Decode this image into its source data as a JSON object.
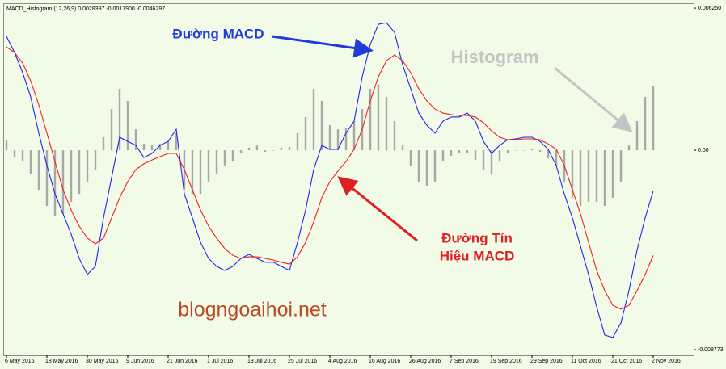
{
  "chart_data": {
    "type": "combo",
    "title": "MACD_Histogram (12,26,9) 0.0028397 -0.0017900 -0.0046297",
    "x": [
      0,
      2,
      4,
      6,
      8,
      10,
      12,
      14,
      16,
      18,
      20,
      22,
      24,
      26,
      28,
      30,
      32,
      34,
      36,
      38,
      40,
      42,
      44,
      46,
      48,
      50,
      52,
      54,
      56,
      58,
      60,
      62,
      64,
      66,
      68,
      70,
      72,
      74,
      76,
      78,
      80,
      82,
      84,
      86,
      88,
      90,
      92,
      94,
      96,
      98,
      100,
      102,
      104,
      106,
      108,
      110,
      112,
      114,
      116,
      118,
      120,
      122,
      124,
      126,
      128,
      130,
      132,
      134,
      136,
      138,
      140,
      142,
      144,
      146,
      148,
      150,
      152,
      154,
      156,
      158,
      160
    ],
    "xlim": [
      -0.6,
      170
    ],
    "xticks": [
      {
        "value": 0,
        "label": "6 May 2016"
      },
      {
        "value": 10,
        "label": "18 May 2016"
      },
      {
        "value": 20,
        "label": "30 May 2016"
      },
      {
        "value": 30,
        "label": "9 Jun 2016"
      },
      {
        "value": 40,
        "label": "21 Jun 2016"
      },
      {
        "value": 50,
        "label": "1 Jul 2016"
      },
      {
        "value": 60,
        "label": "13 Jul 2016"
      },
      {
        "value": 70,
        "label": "25 Jul 2016"
      },
      {
        "value": 80,
        "label": "4 Aug 2016"
      },
      {
        "value": 90,
        "label": "16 Aug 2016"
      },
      {
        "value": 100,
        "label": "26 Aug 2016"
      },
      {
        "value": 110,
        "label": "7 Sep 2016"
      },
      {
        "value": 120,
        "label": "19 Sep 2016"
      },
      {
        "value": 130,
        "label": "29 Sep 2016"
      },
      {
        "value": 140,
        "label": "11 Oct 2016"
      },
      {
        "value": 150,
        "label": "21 Oct 2016"
      },
      {
        "value": 160,
        "label": "2 Nov 2016"
      }
    ],
    "ylim": [
      -0.00902,
      0.00643
    ],
    "yticks": [
      {
        "value": 0.00625,
        "label": "0.006250"
      },
      {
        "value": 0,
        "label": "0.00"
      },
      {
        "value": -0.008773,
        "label": "-0.008773"
      }
    ],
    "series": [
      {
        "type": "bar",
        "color": "#a8a8a8",
        "values": [
          0.00046,
          -0.00032,
          -0.0005,
          -0.00103,
          -0.00174,
          -0.00245,
          -0.00291,
          -0.0028,
          -0.00227,
          -0.00192,
          -0.00138,
          -0.00085,
          0.00057,
          0.00181,
          0.0027,
          0.00217,
          0.00092,
          0.00028,
          0.00021,
          0.00028,
          0.00039,
          0.00075,
          -0.00174,
          -0.00192,
          -0.00192,
          -0.00138,
          -0.00103,
          -0.00067,
          -0.0005,
          -0.00014,
          0.00011,
          0.00021,
          -7e-05,
          0,
          0.00011,
          0.00014,
          0.00075,
          0.00146,
          0.0027,
          0.00217,
          0.0011,
          0.00092,
          0.00099,
          0.00128,
          0.00181,
          0.0027,
          0.00288,
          0.00234,
          0.00128,
          0.00021,
          -0.00067,
          -0.00138,
          -0.00156,
          -0.00138,
          -0.0005,
          -0.00025,
          -0.00014,
          -0.00014,
          -0.00043,
          -0.00085,
          -0.00103,
          -0.0005,
          -0.00014,
          0,
          0,
          7e-05,
          -7e-05,
          -0.00036,
          -0.00067,
          -0.00138,
          -0.00209,
          -0.00245,
          -0.00227,
          -0.00227,
          -0.00245,
          -0.00209,
          -0.00138,
          0.00021,
          0.00128,
          0.00234,
          0.0028397
        ]
      },
      {
        "type": "line",
        "color": "#2424e6",
        "values": [
          0.00501,
          0.0043,
          0.00341,
          0.00234,
          0.00075,
          -0.00067,
          -0.00192,
          -0.0028,
          -0.00369,
          -0.00476,
          -0.00547,
          -0.00511,
          -0.00298,
          -0.00121,
          0.00057,
          0.00039,
          0.00021,
          -0.00032,
          -0.00014,
          0.00021,
          0.00039,
          0.00092,
          -0.00192,
          -0.00298,
          -0.00405,
          -0.00476,
          -0.00511,
          -0.00529,
          -0.00511,
          -0.00476,
          -0.00458,
          -0.00476,
          -0.00493,
          -0.00493,
          -0.00511,
          -0.00529,
          -0.00405,
          -0.00263,
          -0.00085,
          0.00021,
          4e-05,
          4e-05,
          0.00075,
          0.00128,
          0.00323,
          0.00465,
          0.00554,
          0.00561,
          0.00518,
          0.00376,
          0.0027,
          0.00163,
          0.0011,
          0.00075,
          0.00128,
          0.00146,
          0.00146,
          0.00163,
          0.00128,
          0.00039,
          -0.00014,
          0.00021,
          0.00046,
          0.0005,
          0.00057,
          0.00057,
          0.00039,
          4e-05,
          -0.00067,
          -0.00192,
          -0.00298,
          -0.00422,
          -0.00547,
          -0.00689,
          -0.00813,
          -0.00824,
          -0.0076,
          -0.00618,
          -0.0044,
          -0.00298,
          -0.00179
        ]
      },
      {
        "type": "line",
        "color": "#f02020",
        "values": [
          0.00454,
          0.0043,
          0.00383,
          0.00305,
          0.00199,
          0.00075,
          -0.0005,
          -0.00174,
          -0.00263,
          -0.00334,
          -0.00387,
          -0.00412,
          -0.00387,
          -0.00298,
          -0.00209,
          -0.00138,
          -0.00085,
          -0.0006,
          -0.00043,
          -0.00028,
          -0.00014,
          -0.00014,
          -0.00085,
          -0.00174,
          -0.00263,
          -0.00334,
          -0.00387,
          -0.00433,
          -0.00462,
          -0.00476,
          -0.00469,
          -0.00469,
          -0.00476,
          -0.00483,
          -0.00493,
          -0.00501,
          -0.00469,
          -0.00405,
          -0.00316,
          -0.00209,
          -0.00138,
          -0.00092,
          -0.0005,
          4e-05,
          0.00092,
          0.00217,
          0.00323,
          0.00394,
          0.00419,
          0.00394,
          0.00341,
          0.0027,
          0.00217,
          0.00181,
          0.00163,
          0.00156,
          0.00153,
          0.00153,
          0.00146,
          0.00121,
          0.00085,
          0.00057,
          0.00046,
          0.00046,
          0.0005,
          0.0005,
          0.00046,
          0.00028,
          4e-05,
          -0.00067,
          -0.00174,
          -0.0028,
          -0.00405,
          -0.00529,
          -0.00618,
          -0.00682,
          -0.00699,
          -0.00682,
          -0.00618,
          -0.00547,
          -0.0046297
        ]
      }
    ],
    "annotations": [
      {
        "text": "Đường MACD",
        "color": "#1f3cd8"
      },
      {
        "text": "Histogram",
        "color": "#c4c4c4"
      },
      {
        "text": "Đường Tín",
        "color": "#e02020"
      },
      {
        "text": "Hiệu MACD",
        "color": "#e02020"
      },
      {
        "text": "blogngoaihoi.net",
        "color": "#b84a24"
      }
    ]
  }
}
